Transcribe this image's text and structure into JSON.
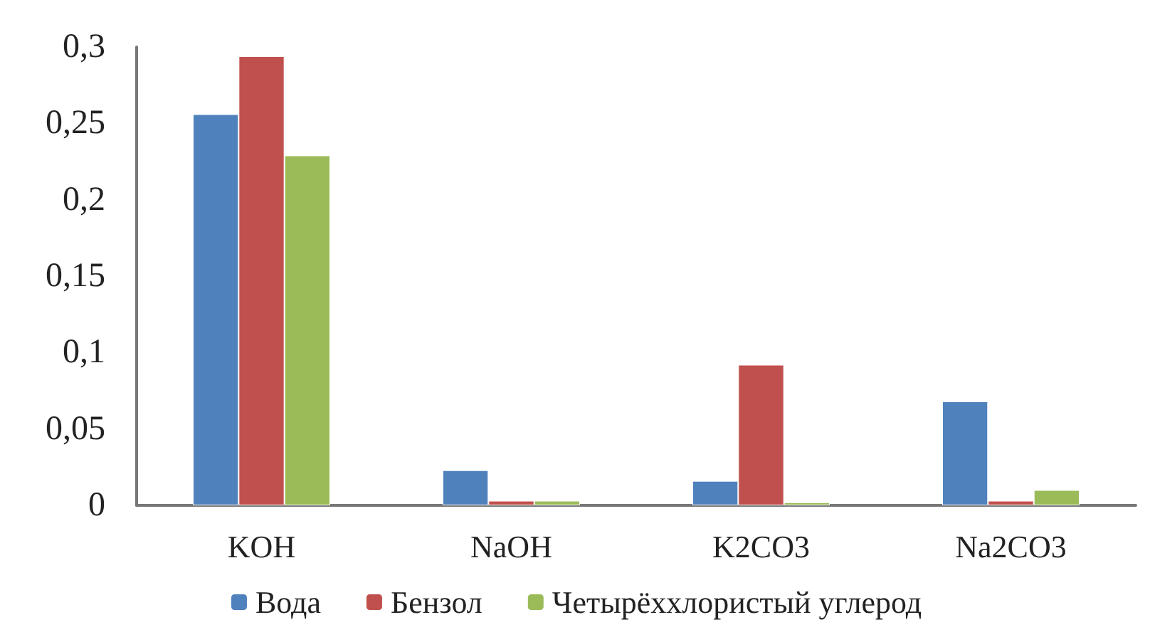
{
  "chart_data": {
    "type": "bar",
    "categories": [
      "KOH",
      "NaOH",
      "K2CO3",
      "Na2CO3"
    ],
    "series": [
      {
        "name": "Вода",
        "color": "#4f81bd",
        "values": [
          0.256,
          0.023,
          0.016,
          0.068
        ]
      },
      {
        "name": "Бензол",
        "color": "#c0504d",
        "values": [
          0.294,
          0.003,
          0.092,
          0.003
        ]
      },
      {
        "name": "Четырёххлористый углерод",
        "color": "#9bbb59",
        "values": [
          0.229,
          0.003,
          0.002,
          0.01
        ]
      }
    ],
    "ylim": [
      0,
      0.3
    ],
    "yticks": [
      0,
      {
        "value": 0.05,
        "label": "0,05"
      },
      {
        "value": 0.1,
        "label": "0,1"
      },
      {
        "value": 0.15,
        "label": "0,15"
      },
      {
        "value": 0.2,
        "label": "0,2"
      },
      {
        "value": 0.25,
        "label": "0,25"
      },
      {
        "value": 0.3,
        "label": "0,3"
      }
    ],
    "grid": false,
    "legend": "bottom"
  }
}
